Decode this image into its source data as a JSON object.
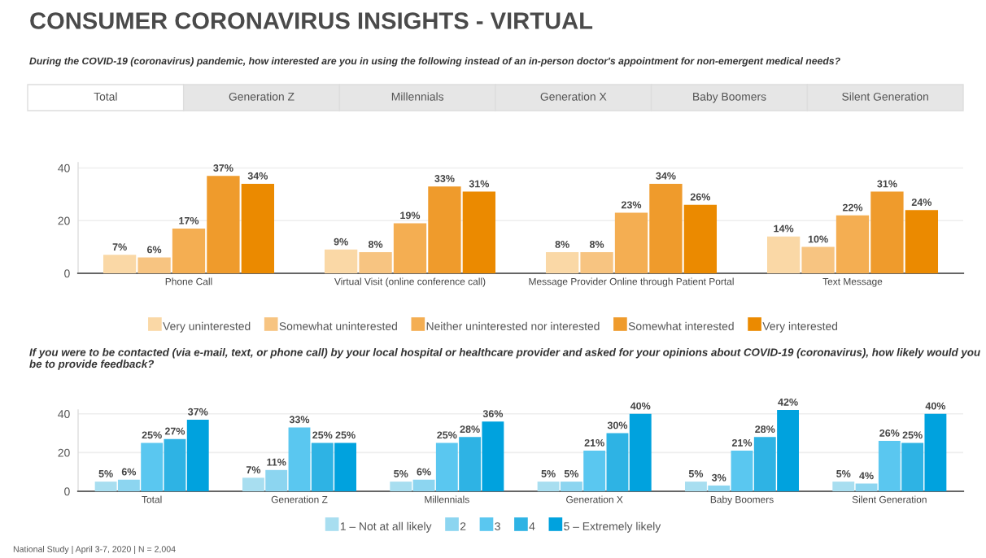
{
  "chart_data": [
    {
      "type": "bar",
      "title": "CONSUMER CORONAVIRUS INSIGHTS - VIRTUAL",
      "subtitle": "During the COVID-19 (coronavirus) pandemic, how interested are you in using the following instead of an in-person doctor's appointment for non-emergent medical needs?",
      "annotations": [
        "Total",
        "Generation Z",
        "Millennials",
        "Generation X",
        "Baby Boomers",
        "Silent Generation"
      ],
      "categories": [
        "Phone Call",
        "Virtual Visit (online conference call)",
        "Message Provider Online through Patient Portal",
        "Text Message"
      ],
      "series": [
        {
          "name": "Very uninterested",
          "color": "#fad8a6",
          "values": [
            7,
            9,
            8,
            14
          ],
          "value_labels": [
            "7%",
            "9%",
            "8%",
            "14%"
          ]
        },
        {
          "name": "Somewhat uninterested",
          "color": "#f7c481",
          "values": [
            6,
            8,
            8,
            10
          ],
          "value_labels": [
            "6%",
            "8%",
            "8%",
            "10%"
          ]
        },
        {
          "name": "Neither uninterested nor interested",
          "color": "#f4ae52",
          "values": [
            17,
            19,
            23,
            22
          ],
          "value_labels": [
            "17%",
            "19%",
            "23%",
            "22%"
          ]
        },
        {
          "name": "Somewhat interested",
          "color": "#ef9b2c",
          "values": [
            37,
            33,
            34,
            31
          ],
          "value_labels": [
            "37%",
            "33%",
            "34%",
            "31%"
          ]
        },
        {
          "name": "Very interested",
          "color": "#eb8a00",
          "values": [
            34,
            31,
            26,
            24
          ],
          "value_labels": [
            "34%",
            "31%",
            "26%",
            "24%"
          ]
        }
      ],
      "ylim": [
        0,
        42
      ],
      "yticks": [
        0,
        20,
        40
      ],
      "grid": "y",
      "legend": "bottom"
    },
    {
      "type": "bar",
      "title": "If you were to be contacted (via e-mail, text, or phone call) by your local hospital or healthcare provider and asked for your opinions about COVID-19 (coronavirus), how likely would you be to provide feedback?",
      "annotations": [
        "National Study | April 3-7, 2020 | N = 2,004"
      ],
      "categories": [
        "Total",
        "Generation Z",
        "Millennials",
        "Generation X",
        "Baby Boomers",
        "Silent Generation"
      ],
      "series": [
        {
          "name": "1 – Not at all likely",
          "color": "#a8def0",
          "values": [
            5,
            7,
            5,
            5,
            5,
            5
          ],
          "value_labels": [
            "5%",
            "7%",
            "5%",
            "5%",
            "5%",
            "5%"
          ]
        },
        {
          "name": "2",
          "color": "#8cd5f0",
          "values": [
            6,
            11,
            6,
            5,
            3,
            4
          ],
          "value_labels": [
            "6%",
            "11%",
            "6%",
            "5%",
            "3%",
            "4%"
          ]
        },
        {
          "name": "3",
          "color": "#5ac7f0",
          "values": [
            25,
            33,
            25,
            21,
            21,
            26
          ],
          "value_labels": [
            "25%",
            "33%",
            "25%",
            "21%",
            "21%",
            "26%"
          ]
        },
        {
          "name": "4",
          "color": "#2eb3e4",
          "values": [
            27,
            25,
            28,
            30,
            28,
            25
          ],
          "value_labels": [
            "27%",
            "25%",
            "28%",
            "30%",
            "28%",
            "25%"
          ]
        },
        {
          "name": "5 – Extremely likely",
          "color": "#00a2de",
          "values": [
            37,
            25,
            36,
            40,
            42,
            40
          ],
          "value_labels": [
            "37%",
            "25%",
            "36%",
            "40%",
            "42%",
            "40%"
          ]
        }
      ],
      "ylim": [
        0,
        42
      ],
      "yticks": [
        0,
        20,
        40
      ],
      "grid": "y",
      "legend": "bottom"
    }
  ]
}
